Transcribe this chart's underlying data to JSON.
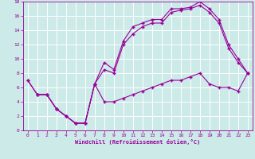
{
  "xlabel": "Windchill (Refroidissement éolien,°C)",
  "bg_color": "#cceae8",
  "line_color": "#990099",
  "grid_color": "#ffffff",
  "xlim": [
    -0.5,
    23.5
  ],
  "ylim": [
    0,
    18
  ],
  "xticks": [
    0,
    1,
    2,
    3,
    4,
    5,
    6,
    7,
    8,
    9,
    10,
    11,
    12,
    13,
    14,
    15,
    16,
    17,
    18,
    19,
    20,
    21,
    22,
    23
  ],
  "yticks": [
    0,
    2,
    4,
    6,
    8,
    10,
    12,
    14,
    16,
    18
  ],
  "line1_x": [
    0,
    1,
    2,
    3,
    4,
    5,
    6,
    7,
    8,
    9,
    10,
    11,
    12,
    13,
    14,
    15,
    16,
    17,
    18,
    19,
    20,
    21,
    22,
    23
  ],
  "line1_y": [
    7,
    5,
    5,
    3,
    2,
    1,
    1,
    6.5,
    9.5,
    8.5,
    12.5,
    14.5,
    15.0,
    15.5,
    15.5,
    17.0,
    17.0,
    17.2,
    18.0,
    17.0,
    15.5,
    12.0,
    10.0,
    8.0
  ],
  "line2_x": [
    0,
    1,
    2,
    3,
    4,
    5,
    6,
    7,
    8,
    9,
    10,
    11,
    12,
    13,
    14,
    15,
    16,
    17,
    18,
    19,
    20,
    21,
    22,
    23
  ],
  "line2_y": [
    7,
    5,
    5,
    3,
    2,
    1,
    1,
    6.5,
    8.5,
    8.0,
    12.0,
    13.5,
    14.5,
    15.0,
    15.0,
    16.5,
    16.8,
    17.0,
    17.5,
    16.5,
    15.0,
    11.5,
    9.5,
    8.0
  ],
  "line3_x": [
    1,
    2,
    3,
    4,
    5,
    6,
    7,
    8,
    9,
    10,
    11,
    12,
    13,
    14,
    15,
    16,
    17,
    18,
    19,
    20,
    21,
    22,
    23
  ],
  "line3_y": [
    5,
    5,
    3,
    2,
    1,
    1,
    6.5,
    4.0,
    4.0,
    4.5,
    5.0,
    5.5,
    6.0,
    6.5,
    7.0,
    7.0,
    7.5,
    8.0,
    6.5,
    6.0,
    6.0,
    5.5,
    8.0
  ]
}
